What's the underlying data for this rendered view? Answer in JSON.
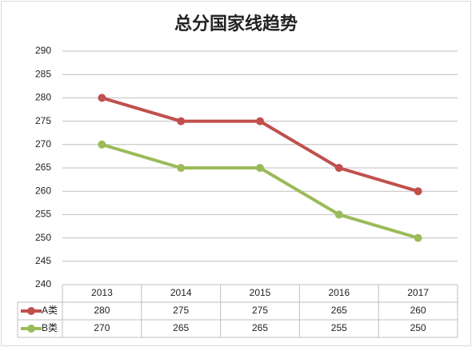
{
  "chart_data": {
    "type": "line",
    "title": "总分国家线趋势",
    "categories": [
      "2013",
      "2014",
      "2015",
      "2016",
      "2017"
    ],
    "series": [
      {
        "name": "A类",
        "color": "#c0504d",
        "values": [
          280,
          275,
          275,
          265,
          260
        ]
      },
      {
        "name": "B类",
        "color": "#9bbb59",
        "values": [
          270,
          265,
          265,
          255,
          250
        ]
      }
    ],
    "ylim": [
      240,
      290
    ],
    "yticks": [
      240,
      245,
      250,
      255,
      260,
      265,
      270,
      275,
      280,
      285,
      290
    ],
    "grid": true
  }
}
